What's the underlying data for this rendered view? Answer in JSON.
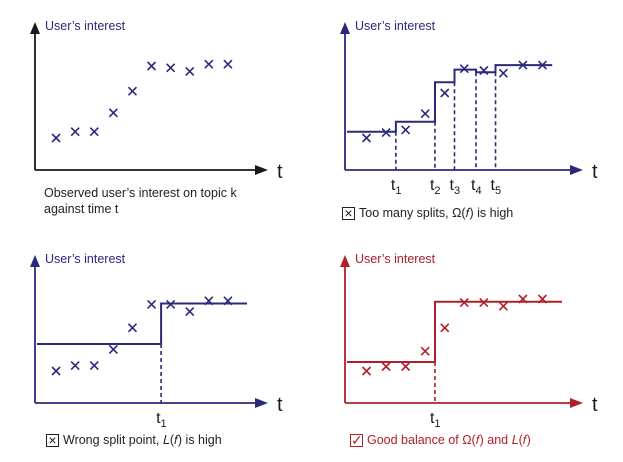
{
  "panels": [
    {
      "id": "observed",
      "ylabel": "User’s interest",
      "xlabel": "t",
      "axis_color": "#1a1a1a",
      "mark_color": "#2a2a7a",
      "points": [
        [
          1,
          1
        ],
        [
          2,
          1.35
        ],
        [
          3,
          1.35
        ],
        [
          4,
          2.4
        ],
        [
          5,
          3.6
        ],
        [
          6,
          5.0
        ],
        [
          7,
          4.9
        ],
        [
          8,
          4.7
        ],
        [
          9,
          5.1
        ],
        [
          10,
          5.1
        ]
      ],
      "steps": [],
      "splits": [],
      "split_labels": []
    },
    {
      "id": "too-many-splits",
      "ylabel": "User’s interest",
      "xlabel": "t",
      "axis_color": "#2b2a7a",
      "mark_color": "#2a2a7a",
      "points": [
        [
          1,
          1.0
        ],
        [
          2,
          1.3
        ],
        [
          3,
          1.45
        ],
        [
          4,
          2.35
        ],
        [
          5,
          3.5
        ],
        [
          6,
          4.85
        ],
        [
          7,
          4.75
        ],
        [
          8,
          4.6
        ],
        [
          9,
          5.05
        ],
        [
          10,
          5.05
        ]
      ],
      "steps": [
        [
          0,
          1.35
        ],
        [
          2.5,
          1.35
        ],
        [
          2.5,
          1.9
        ],
        [
          4.5,
          1.9
        ],
        [
          4.5,
          4.1
        ],
        [
          5.5,
          4.1
        ],
        [
          5.5,
          4.8
        ],
        [
          6.6,
          4.8
        ],
        [
          6.6,
          4.65
        ],
        [
          7.6,
          4.65
        ],
        [
          7.6,
          5.05
        ],
        [
          10.5,
          5.05
        ]
      ],
      "splits": [
        2.5,
        4.5,
        5.5,
        6.6,
        7.6
      ],
      "split_labels": [
        {
          "base": "t",
          "sub": "1"
        },
        {
          "base": "t",
          "sub": "2"
        },
        {
          "base": "t",
          "sub": "3"
        },
        {
          "base": "t",
          "sub": "4"
        },
        {
          "base": "t",
          "sub": "5"
        }
      ]
    },
    {
      "id": "wrong-split",
      "ylabel": "User’s interest",
      "xlabel": "t",
      "axis_color": "#2b2a7a",
      "mark_color": "#2a2a7a",
      "points": [
        [
          1,
          1.0
        ],
        [
          2,
          1.3
        ],
        [
          3,
          1.3
        ],
        [
          4,
          2.2
        ],
        [
          5,
          3.4
        ],
        [
          6,
          4.7
        ],
        [
          7,
          4.7
        ],
        [
          8,
          4.3
        ],
        [
          9,
          4.9
        ],
        [
          10,
          4.9
        ]
      ],
      "steps": [
        [
          0,
          2.5
        ],
        [
          6.5,
          2.5
        ],
        [
          6.5,
          4.75
        ],
        [
          11,
          4.75
        ]
      ],
      "splits": [
        6.5
      ],
      "split_labels": [
        {
          "base": "t",
          "sub": "1"
        }
      ]
    },
    {
      "id": "good-balance",
      "ylabel": "User’s interest",
      "xlabel": "t",
      "axis_color": "#b0202a",
      "mark_color": "#b0202a",
      "points": [
        [
          1,
          1.0
        ],
        [
          2,
          1.25
        ],
        [
          3,
          1.25
        ],
        [
          4,
          2.1
        ],
        [
          5,
          3.4
        ],
        [
          6,
          4.8
        ],
        [
          7,
          4.8
        ],
        [
          8,
          4.6
        ],
        [
          9,
          5.0
        ],
        [
          10,
          5.0
        ]
      ],
      "steps": [
        [
          0,
          1.5
        ],
        [
          4.5,
          1.5
        ],
        [
          4.5,
          4.85
        ],
        [
          11,
          4.85
        ]
      ],
      "splits": [
        4.5
      ],
      "split_labels": [
        {
          "base": "t",
          "sub": "1"
        }
      ]
    }
  ],
  "captions": {
    "observed_line1": "Observed user’s interest on topic k",
    "observed_line2": "against time t",
    "too_many_text": "Too many splits, Ω(𝑓) is high",
    "too_many_mark": "×",
    "wrong_text": "Wrong split point, 𝐿(𝑓) is high",
    "wrong_mark": "×",
    "good_text": "Good balance of Ω(𝑓) and 𝐿(𝑓)",
    "good_mark": "✓"
  }
}
